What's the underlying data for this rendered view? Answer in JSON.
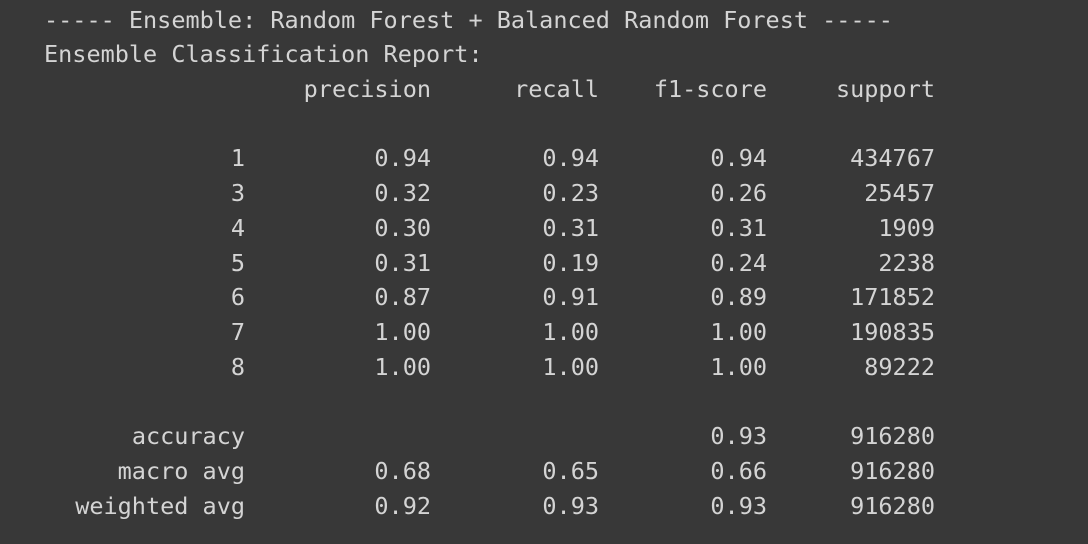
{
  "console": {
    "heading": "----- Ensemble: Random Forest + Balanced Random Forest -----",
    "report_title": "Ensemble Classification Report:"
  },
  "report": {
    "columns": [
      "precision",
      "recall",
      "f1-score",
      "support"
    ],
    "rows": [
      {
        "label": "1",
        "precision": "0.94",
        "recall": "0.94",
        "f1": "0.94",
        "support": "434767"
      },
      {
        "label": "3",
        "precision": "0.32",
        "recall": "0.23",
        "f1": "0.26",
        "support": "25457"
      },
      {
        "label": "4",
        "precision": "0.30",
        "recall": "0.31",
        "f1": "0.31",
        "support": "1909"
      },
      {
        "label": "5",
        "precision": "0.31",
        "recall": "0.19",
        "f1": "0.24",
        "support": "2238"
      },
      {
        "label": "6",
        "precision": "0.87",
        "recall": "0.91",
        "f1": "0.89",
        "support": "171852"
      },
      {
        "label": "7",
        "precision": "1.00",
        "recall": "1.00",
        "f1": "1.00",
        "support": "190835"
      },
      {
        "label": "8",
        "precision": "1.00",
        "recall": "1.00",
        "f1": "1.00",
        "support": "89222"
      }
    ],
    "summary": [
      {
        "label": "accuracy",
        "precision": "",
        "recall": "",
        "f1": "0.93",
        "support": "916280"
      },
      {
        "label": "macro avg",
        "precision": "0.68",
        "recall": "0.65",
        "f1": "0.66",
        "support": "916280"
      },
      {
        "label": "weighted avg",
        "precision": "0.92",
        "recall": "0.93",
        "f1": "0.93",
        "support": "916280"
      }
    ]
  },
  "colors": {
    "background": "#383838",
    "text": "#d4d4d4"
  }
}
